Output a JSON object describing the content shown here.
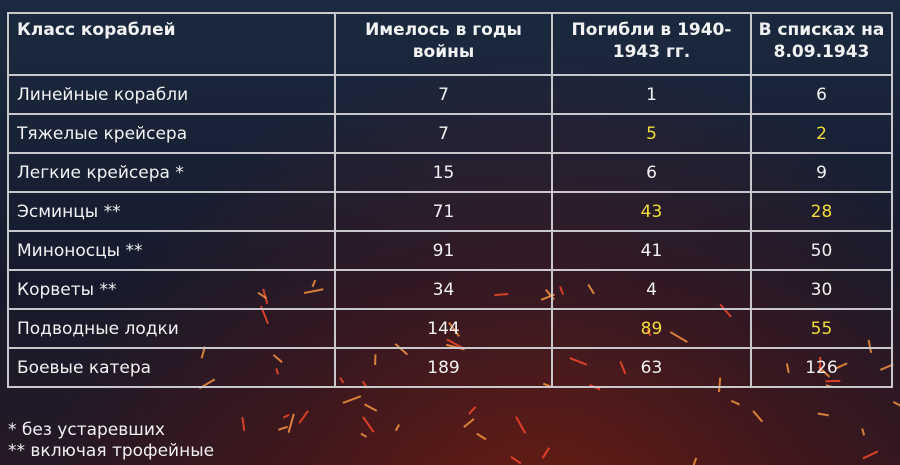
{
  "table": {
    "headers": [
      "Класс кораблей",
      "Имелось в годы войны",
      "Погибли в 1940-1943 гг.",
      "В списках на 8.09.1943"
    ],
    "rows": [
      [
        "Линейные корабли",
        "7",
        "1",
        "6"
      ],
      [
        "Тяжелые  крейсера",
        "7",
        "5",
        "2"
      ],
      [
        "Легкие крейсера *",
        "15",
        "6",
        "9"
      ],
      [
        "Эсминцы **",
        "71",
        "43",
        "28"
      ],
      [
        "Миноносцы **",
        "91",
        "41",
        "50"
      ],
      [
        "Корветы **",
        "34",
        "4",
        "30"
      ],
      [
        "Подводные лодки",
        "144",
        "89",
        "55"
      ],
      [
        "Боевые катера",
        "189",
        "63",
        "126"
      ]
    ],
    "highlighted_rows": [
      1,
      3,
      6
    ],
    "highlight_color": "#f2dc3a"
  },
  "notes": [
    "* без устаревших",
    "** включая трофейные"
  ]
}
